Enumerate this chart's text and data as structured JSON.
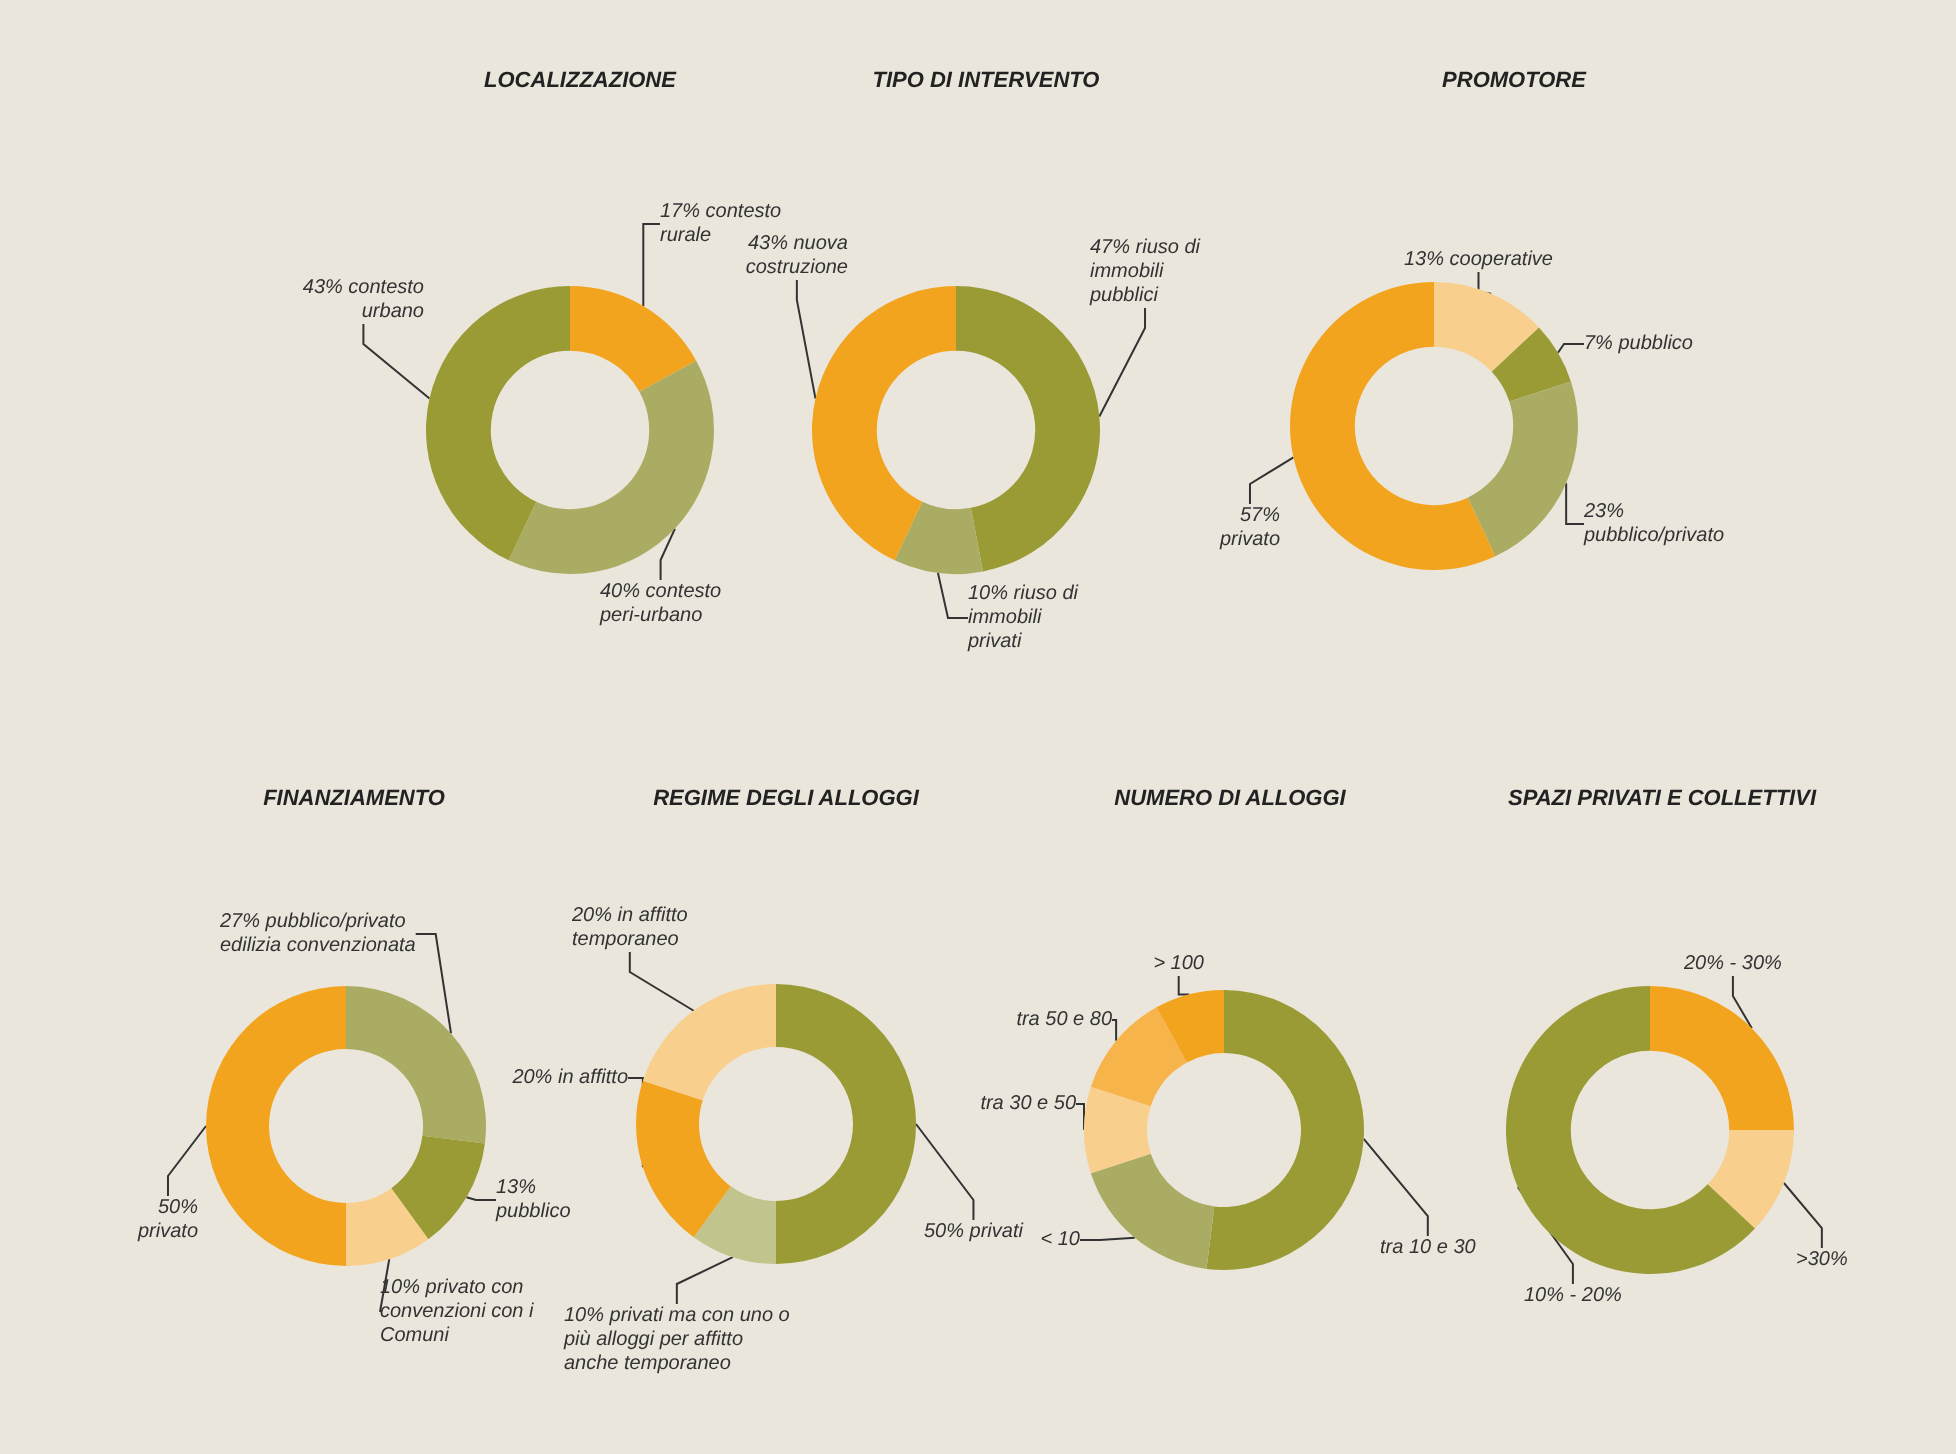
{
  "chart_data": [
    {
      "type": "donut",
      "title": "LOCALIZZAZIONE",
      "categories": [
        "contesto rurale",
        "contesto peri-urbano",
        "contesto urbano"
      ],
      "values": [
        17,
        40,
        43
      ],
      "colors": [
        "#f2a41f",
        "#a9ac62",
        "#9a9b35"
      ],
      "value_labels": [
        "17%",
        "40%",
        "43%"
      ]
    },
    {
      "type": "donut",
      "title": "TIPO DI INTERVENTO",
      "categories": [
        "riuso di immobili pubblici",
        "riuso di immobili privati",
        "nuova costruzione"
      ],
      "values": [
        47,
        10,
        43
      ],
      "colors": [
        "#9a9b35",
        "#a9ac62",
        "#f2a41f"
      ],
      "value_labels": [
        "47%",
        "10%",
        "43%"
      ]
    },
    {
      "type": "donut",
      "title": "PROMOTORE",
      "categories": [
        "cooperative",
        "pubblico",
        "pubblico/privato",
        "privato"
      ],
      "values": [
        13,
        7,
        23,
        57
      ],
      "colors": [
        "#f8cf8c",
        "#9a9b35",
        "#a9ac62",
        "#f2a41f"
      ],
      "value_labels": [
        "13%",
        "7%",
        "23%",
        "57%"
      ]
    },
    {
      "type": "donut",
      "title": "FINANZIAMENTO",
      "categories": [
        "pubblico/privato edilizia convenzionata",
        "pubblico",
        "privato con convenzioni con i Comuni",
        "privato"
      ],
      "values": [
        27,
        13,
        10,
        50
      ],
      "colors": [
        "#a9ac62",
        "#9a9b35",
        "#f8cf8c",
        "#f2a41f"
      ],
      "value_labels": [
        "27%",
        "13%",
        "10%",
        "50%"
      ]
    },
    {
      "type": "donut",
      "title": "REGIME DEGLI ALLOGGI",
      "categories": [
        "privati",
        "privati ma con uno o più alloggi per affitto anche temporaneo",
        "in affitto",
        "in affitto temporaneo"
      ],
      "values": [
        50,
        10,
        20,
        20
      ],
      "colors": [
        "#9a9b35",
        "#c2c48e",
        "#f2a41f",
        "#f8cf8c"
      ],
      "value_labels": [
        "50%",
        "10%",
        "20%",
        "20%"
      ]
    },
    {
      "type": "donut",
      "title": "NUMERO DI ALLOGGI",
      "categories": [
        "tra 10 e 30",
        "< 10",
        "tra 30 e 50",
        "tra 50 e 80",
        "> 100"
      ],
      "values": [
        52,
        18,
        10,
        12,
        8
      ],
      "colors": [
        "#9a9b35",
        "#a9ac62",
        "#f8cf8c",
        "#f6b44a",
        "#f2a41f"
      ]
    },
    {
      "type": "donut",
      "title": "SPAZI PRIVATI E COLLETTIVI",
      "categories": [
        "20% - 30%",
        ">30%",
        "10% - 20%"
      ],
      "values": [
        25,
        12,
        63
      ],
      "colors": [
        "#f2a41f",
        "#f8cf8c",
        "#9a9b35"
      ]
    }
  ]
}
